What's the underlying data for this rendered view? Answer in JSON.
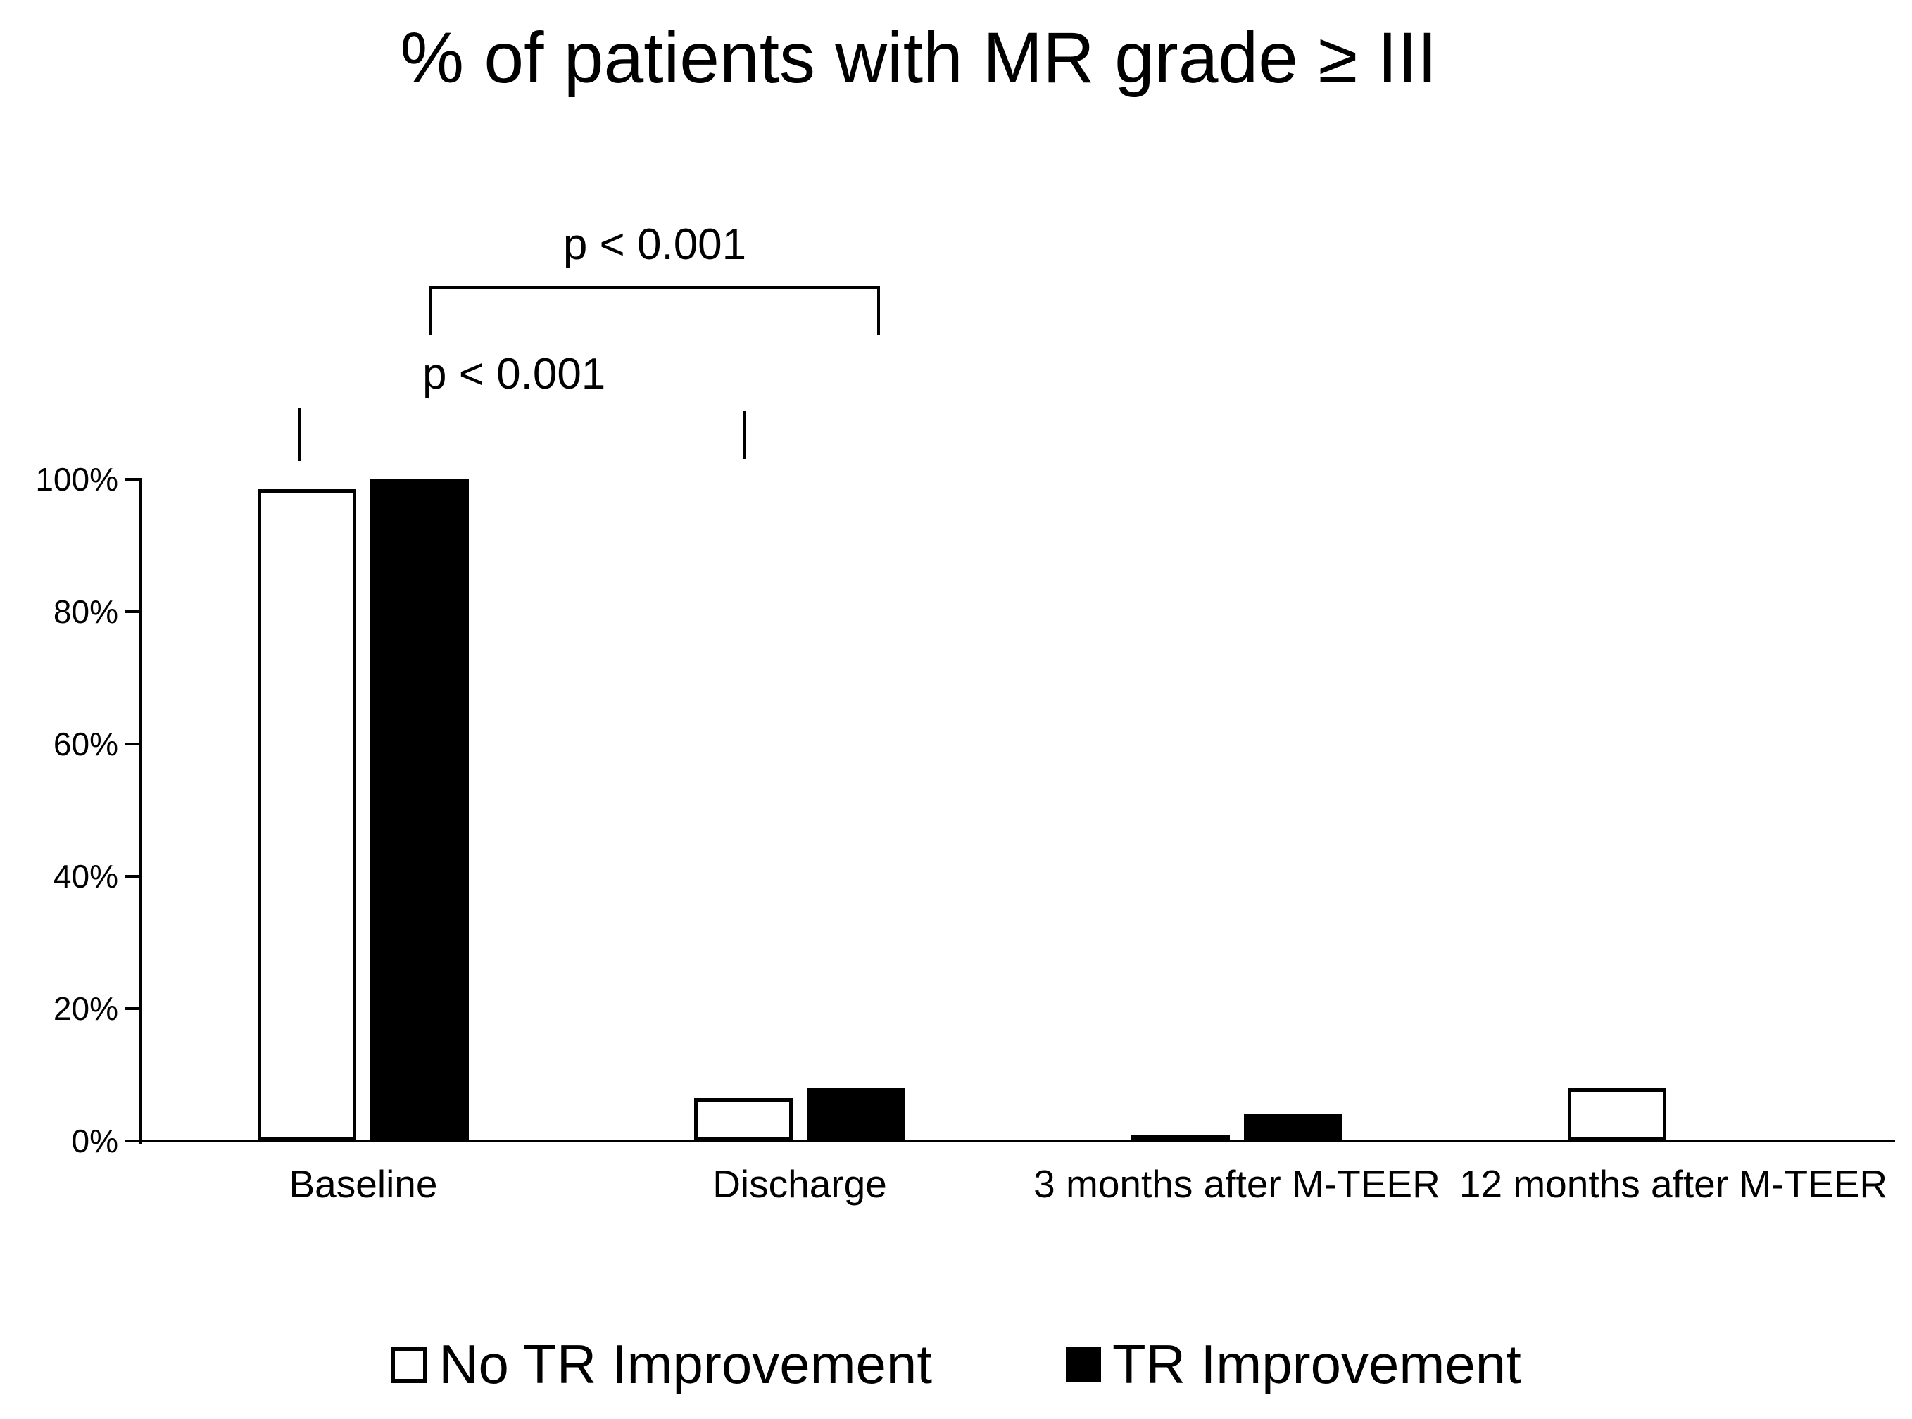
{
  "title": "% of patients with MR grade ≥ III",
  "annotations": {
    "p_value_top": "p < 0.001",
    "p_value_lower": "p < 0.001"
  },
  "legend": {
    "items": [
      {
        "label": "No TR Improvement",
        "marker": "white-outline-square"
      },
      {
        "label": "TR Improvement",
        "marker": "black-filled-square"
      }
    ]
  },
  "colors": {
    "background": "#ffffff",
    "axis": "#000000",
    "text": "#000000",
    "bar_no_tr_fill": "#ffffff",
    "bar_no_tr_border": "#000000",
    "bar_tr_fill": "#000000"
  },
  "chart_data": {
    "type": "bar",
    "title": "% of patients with MR grade ≥ III",
    "categories": [
      "Baseline",
      "Discharge",
      "3 months after M-TEER",
      "12 months after M-TEER"
    ],
    "series": [
      {
        "name": "No TR Improvement",
        "style": "white-outline",
        "values": [
          98.5,
          6.5,
          1,
          8
        ]
      },
      {
        "name": "TR Improvement",
        "style": "black-filled",
        "values": [
          100,
          8,
          4,
          0
        ]
      }
    ],
    "xlabel": "",
    "ylabel": "",
    "ylim": [
      0,
      100
    ],
    "yticks": [
      {
        "value": 0,
        "label": "0%"
      },
      {
        "value": 20,
        "label": "20%"
      },
      {
        "value": 40,
        "label": "40%"
      },
      {
        "value": 60,
        "label": "60%"
      },
      {
        "value": 80,
        "label": "80%"
      },
      {
        "value": 100,
        "label": "100%"
      }
    ],
    "grid": false,
    "legend_position": "bottom",
    "significance_brackets": [
      {
        "label": "p < 0.001",
        "position": "top",
        "connects": [
          "Baseline",
          "Discharge"
        ]
      },
      {
        "label": "p < 0.001",
        "position": "lower",
        "connects": [
          "Baseline",
          "Discharge"
        ]
      }
    ]
  }
}
